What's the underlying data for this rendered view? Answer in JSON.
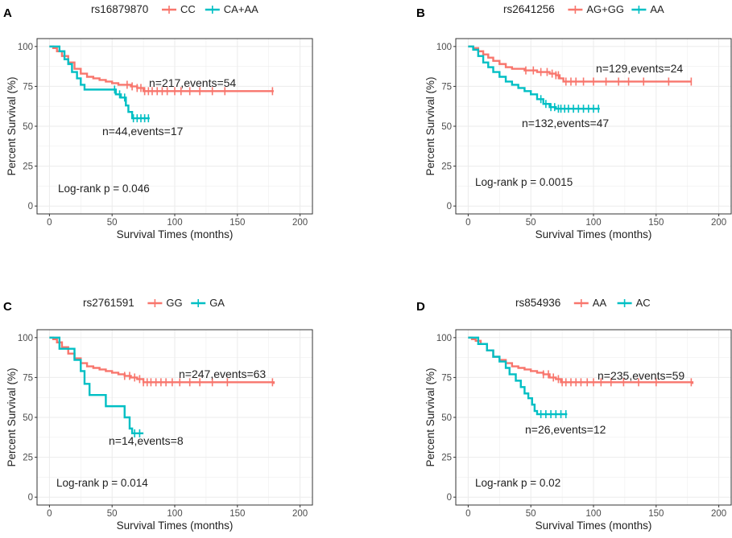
{
  "figure": {
    "colors": {
      "series_a": "#F8766D",
      "series_b": "#00BFC4",
      "grid": "#EBEBEB",
      "frame": "#333333"
    }
  },
  "chart_data": [
    {
      "panel": "A",
      "type": "line",
      "title": "rs16879870",
      "xlabel": "Survival Times (months)",
      "ylabel": "Percent Survival (%)",
      "xlim": [
        0,
        200
      ],
      "ylim": [
        0,
        100
      ],
      "xticks": [
        0,
        50,
        100,
        150,
        200
      ],
      "yticks": [
        0,
        25,
        50,
        75,
        100
      ],
      "pvalue": "Log-rank  p = 0.046",
      "series": [
        {
          "name": "CC",
          "color": "#F8766D",
          "label": "n=217,events=54",
          "points": [
            [
              0,
              100
            ],
            [
              3,
              99
            ],
            [
              6,
              97
            ],
            [
              10,
              94
            ],
            [
              15,
              90
            ],
            [
              20,
              86
            ],
            [
              25,
              83
            ],
            [
              30,
              81
            ],
            [
              35,
              80
            ],
            [
              40,
              79
            ],
            [
              45,
              78
            ],
            [
              50,
              77
            ],
            [
              55,
              76
            ],
            [
              60,
              76
            ],
            [
              65,
              75
            ],
            [
              70,
              74
            ],
            [
              75,
              72
            ],
            [
              80,
              72
            ],
            [
              120,
              72
            ],
            [
              179,
              72
            ]
          ],
          "censor": [
            62,
            66,
            70,
            73,
            76,
            79,
            82,
            86,
            90,
            94,
            100,
            105,
            112,
            120,
            130,
            140,
            178
          ]
        },
        {
          "name": "CA+AA",
          "color": "#00BFC4",
          "label": "n=44,events=17",
          "points": [
            [
              0,
              100
            ],
            [
              5,
              100
            ],
            [
              8,
              97
            ],
            [
              12,
              92
            ],
            [
              15,
              89
            ],
            [
              18,
              84
            ],
            [
              22,
              80
            ],
            [
              25,
              76
            ],
            [
              28,
              73
            ],
            [
              50,
              73
            ],
            [
              53,
              70
            ],
            [
              57,
              68
            ],
            [
              61,
              63
            ],
            [
              63,
              59
            ],
            [
              66,
              55
            ],
            [
              80,
              55
            ]
          ],
          "censor": [
            52,
            56,
            60,
            67,
            70,
            73,
            76,
            79
          ]
        }
      ]
    },
    {
      "panel": "B",
      "type": "line",
      "title": "rs2641256",
      "xlabel": "Survival Times (months)",
      "ylabel": "Percent Survival (%)",
      "xlim": [
        0,
        200
      ],
      "ylim": [
        0,
        100
      ],
      "xticks": [
        0,
        50,
        100,
        150,
        200
      ],
      "yticks": [
        0,
        25,
        50,
        75,
        100
      ],
      "pvalue": "Log-rank  p = 0.0015",
      "series": [
        {
          "name": "AG+GG",
          "color": "#F8766D",
          "label": "n=129,events=24",
          "points": [
            [
              0,
              100
            ],
            [
              4,
              99
            ],
            [
              8,
              97
            ],
            [
              12,
              95
            ],
            [
              16,
              93
            ],
            [
              20,
              91
            ],
            [
              25,
              89
            ],
            [
              30,
              87
            ],
            [
              35,
              86
            ],
            [
              45,
              85
            ],
            [
              55,
              84
            ],
            [
              65,
              83
            ],
            [
              70,
              82
            ],
            [
              73,
              80
            ],
            [
              76,
              78
            ],
            [
              120,
              78
            ],
            [
              178,
              78
            ]
          ],
          "censor": [
            46,
            52,
            58,
            63,
            67,
            70,
            72,
            78,
            82,
            86,
            92,
            100,
            110,
            120,
            128,
            140,
            160,
            178
          ]
        },
        {
          "name": "AA",
          "color": "#00BFC4",
          "label": "n=132,events=47",
          "points": [
            [
              0,
              100
            ],
            [
              4,
              98
            ],
            [
              8,
              94
            ],
            [
              12,
              90
            ],
            [
              16,
              87
            ],
            [
              20,
              84
            ],
            [
              25,
              81
            ],
            [
              30,
              78
            ],
            [
              35,
              76
            ],
            [
              40,
              74
            ],
            [
              45,
              72
            ],
            [
              50,
              70
            ],
            [
              55,
              67
            ],
            [
              60,
              64
            ],
            [
              65,
              62
            ],
            [
              70,
              61
            ],
            [
              105,
              61
            ]
          ],
          "censor": [
            58,
            62,
            66,
            69,
            72,
            74,
            77,
            80,
            84,
            88,
            92,
            96,
            100,
            104
          ]
        }
      ]
    },
    {
      "panel": "C",
      "type": "line",
      "title": "rs2761591",
      "xlabel": "Survival Times (months)",
      "ylabel": "Percent Survival (%)",
      "xlim": [
        0,
        200
      ],
      "ylim": [
        0,
        100
      ],
      "xticks": [
        0,
        50,
        100,
        150,
        200
      ],
      "yticks": [
        0,
        25,
        50,
        75,
        100
      ],
      "pvalue": "Log-rank  p = 0.014",
      "series": [
        {
          "name": "GG",
          "color": "#F8766D",
          "label": "n=247,events=63",
          "points": [
            [
              0,
              100
            ],
            [
              3,
              99
            ],
            [
              6,
              97
            ],
            [
              10,
              94
            ],
            [
              15,
              90
            ],
            [
              20,
              87
            ],
            [
              25,
              84
            ],
            [
              30,
              82
            ],
            [
              35,
              81
            ],
            [
              40,
              80
            ],
            [
              45,
              79
            ],
            [
              50,
              78
            ],
            [
              55,
              77
            ],
            [
              60,
              76
            ],
            [
              65,
              75
            ],
            [
              70,
              74
            ],
            [
              75,
              72
            ],
            [
              80,
              72
            ],
            [
              120,
              72
            ],
            [
              179,
              71
            ]
          ],
          "censor": [
            60,
            64,
            68,
            72,
            75,
            78,
            81,
            85,
            89,
            93,
            98,
            104,
            112,
            120,
            130,
            142,
            178
          ]
        },
        {
          "name": "GA",
          "color": "#00BFC4",
          "label": "n=14,events=8",
          "points": [
            [
              0,
              100
            ],
            [
              8,
              100
            ],
            [
              8,
              93
            ],
            [
              20,
              93
            ],
            [
              20,
              86
            ],
            [
              25,
              86
            ],
            [
              25,
              79
            ],
            [
              28,
              79
            ],
            [
              28,
              71
            ],
            [
              32,
              71
            ],
            [
              32,
              64
            ],
            [
              45,
              64
            ],
            [
              45,
              57
            ],
            [
              60,
              57
            ],
            [
              60,
              50
            ],
            [
              64,
              50
            ],
            [
              64,
              43
            ],
            [
              66,
              43
            ],
            [
              66,
              40
            ],
            [
              75,
              40
            ]
          ],
          "censor": [
            68,
            72
          ]
        }
      ]
    },
    {
      "panel": "D",
      "type": "line",
      "title": "rs854936",
      "xlabel": "Survival Times (months)",
      "ylabel": "Percent Survival (%)",
      "xlim": [
        0,
        200
      ],
      "ylim": [
        0,
        100
      ],
      "xticks": [
        0,
        50,
        100,
        150,
        200
      ],
      "yticks": [
        0,
        25,
        50,
        75,
        100
      ],
      "pvalue": "Log-rank  p = 0.02",
      "series": [
        {
          "name": "AA",
          "color": "#F8766D",
          "label": "n=235,events=59",
          "points": [
            [
              0,
              100
            ],
            [
              3,
              99
            ],
            [
              6,
              98
            ],
            [
              10,
              96
            ],
            [
              15,
              92
            ],
            [
              20,
              88
            ],
            [
              25,
              86
            ],
            [
              30,
              84
            ],
            [
              35,
              82
            ],
            [
              40,
              81
            ],
            [
              45,
              80
            ],
            [
              50,
              79
            ],
            [
              55,
              78
            ],
            [
              60,
              77
            ],
            [
              65,
              75
            ],
            [
              70,
              74
            ],
            [
              74,
              72
            ],
            [
              80,
              72
            ],
            [
              120,
              72
            ],
            [
              179,
              71
            ]
          ],
          "censor": [
            60,
            64,
            68,
            72,
            75,
            78,
            82,
            86,
            90,
            95,
            100,
            106,
            114,
            124,
            136,
            150,
            178
          ]
        },
        {
          "name": "AC",
          "color": "#00BFC4",
          "label": "n=26,events=12",
          "points": [
            [
              0,
              100
            ],
            [
              8,
              100
            ],
            [
              8,
              96
            ],
            [
              15,
              96
            ],
            [
              15,
              92
            ],
            [
              20,
              92
            ],
            [
              20,
              88
            ],
            [
              25,
              88
            ],
            [
              25,
              85
            ],
            [
              30,
              85
            ],
            [
              30,
              81
            ],
            [
              33,
              81
            ],
            [
              33,
              77
            ],
            [
              38,
              77
            ],
            [
              38,
              73
            ],
            [
              42,
              73
            ],
            [
              42,
              69
            ],
            [
              45,
              69
            ],
            [
              45,
              65
            ],
            [
              48,
              65
            ],
            [
              48,
              62
            ],
            [
              51,
              62
            ],
            [
              51,
              58
            ],
            [
              53,
              58
            ],
            [
              53,
              54
            ],
            [
              55,
              54
            ],
            [
              55,
              52
            ],
            [
              79,
              52
            ]
          ],
          "censor": [
            58,
            62,
            66,
            70,
            74,
            78
          ]
        }
      ]
    }
  ]
}
